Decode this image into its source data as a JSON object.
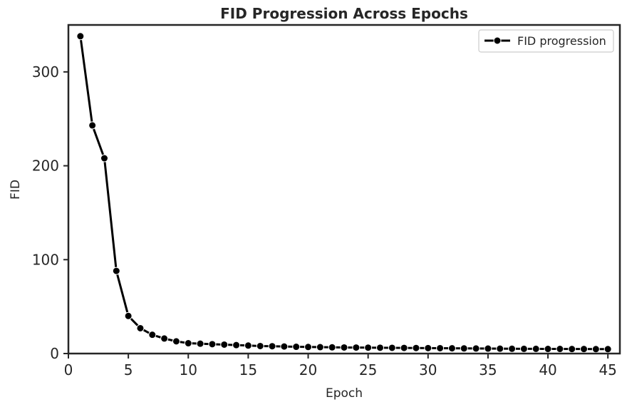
{
  "chart_data": {
    "type": "line",
    "title": "FID Progression Across Epochs",
    "xlabel": "Epoch",
    "ylabel": "FID",
    "xlim": [
      0,
      46
    ],
    "ylim": [
      0,
      350
    ],
    "xticks": [
      0,
      5,
      10,
      15,
      20,
      25,
      30,
      35,
      40,
      45
    ],
    "yticks": [
      0,
      100,
      200,
      300
    ],
    "grid": false,
    "legend_position": "top-right",
    "series": [
      {
        "name": "FID progression",
        "color": "#000000",
        "marker": "circle",
        "x": [
          1,
          2,
          3,
          4,
          5,
          6,
          7,
          8,
          9,
          10,
          11,
          12,
          13,
          14,
          15,
          16,
          17,
          18,
          19,
          20,
          21,
          22,
          23,
          24,
          25,
          26,
          27,
          28,
          29,
          30,
          31,
          32,
          33,
          34,
          35,
          36,
          37,
          38,
          39,
          40,
          41,
          42,
          43,
          44,
          45
        ],
        "y": [
          338,
          243,
          208,
          88,
          40,
          27,
          20,
          16,
          13,
          11,
          10.5,
          10,
          9.5,
          9,
          8.5,
          8,
          7.8,
          7.5,
          7.2,
          7,
          6.8,
          6.6,
          6.5,
          6.4,
          6.3,
          6.2,
          6.1,
          6,
          5.9,
          5.8,
          5.7,
          5.6,
          5.5,
          5.4,
          5.3,
          5.2,
          5.1,
          5,
          5,
          4.9,
          4.9,
          4.8,
          4.8,
          4.7,
          4.7
        ]
      }
    ]
  }
}
